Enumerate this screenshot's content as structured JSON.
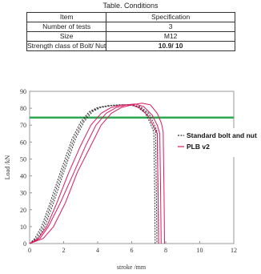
{
  "table": {
    "caption": "Table. Conditions",
    "headers": [
      "Item",
      "Specification"
    ],
    "rows": [
      [
        "Number of tests",
        "3"
      ],
      [
        "Size",
        "M12"
      ],
      [
        "Strength class of Bolt/ Nut",
        "10.9/ 10"
      ]
    ]
  },
  "chart_data": {
    "type": "line",
    "xlabel": "stroke /mm",
    "ylabel": "Load /kN",
    "xlim": [
      0,
      12
    ],
    "ylim": [
      0,
      90
    ],
    "xticks": [
      "0",
      "2",
      "4",
      "6",
      "8",
      "10",
      "12"
    ],
    "yticks": [
      "0",
      "10",
      "20",
      "30",
      "40",
      "50",
      "60",
      "70",
      "80",
      "90"
    ],
    "grid": false,
    "legend_position": "right",
    "reference_line": {
      "y": 74.5,
      "color": "#2fa84f"
    },
    "series": [
      {
        "name": "Standard bolt and nut",
        "color": "#333333",
        "dash": "2,1.5",
        "runs": [
          {
            "x": [
              0,
              0.3,
              0.7,
              1.2,
              1.8,
              2.5,
              3.0,
              3.5,
              4.0,
              4.6,
              5.2,
              5.8,
              6.3,
              6.8,
              7.1,
              7.3,
              7.35,
              7.38
            ],
            "y": [
              0,
              3,
              10,
              24,
              42,
              62,
              72,
              78,
              80.5,
              81.5,
              82,
              82,
              81,
              77,
              71,
              66,
              30,
              0
            ]
          },
          {
            "x": [
              0,
              0.4,
              0.8,
              1.3,
              1.9,
              2.6,
              3.1,
              3.6,
              4.1,
              4.7,
              5.3,
              5.9,
              6.4,
              6.9,
              7.2,
              7.4,
              7.45,
              7.48
            ],
            "y": [
              0,
              3,
              10,
              24,
              42,
              62,
              72,
              78,
              80.5,
              81.5,
              82,
              82,
              81,
              77,
              71,
              66,
              30,
              0
            ]
          },
          {
            "x": [
              0,
              0.5,
              0.9,
              1.4,
              2.0,
              2.7,
              3.2,
              3.7,
              4.2,
              4.8,
              5.4,
              6.0,
              6.5,
              7.0,
              7.3,
              7.5,
              7.55,
              7.58
            ],
            "y": [
              0,
              3,
              10,
              24,
              42,
              62,
              72,
              78,
              80.5,
              81.5,
              82,
              82,
              81,
              77,
              71,
              66,
              30,
              0
            ]
          }
        ]
      },
      {
        "name": "PLB v2",
        "color": "#d81b60",
        "dash": "",
        "runs": [
          {
            "x": [
              0,
              0.5,
              1.0,
              1.6,
              2.3,
              3.0,
              3.6,
              4.2,
              4.8,
              5.4,
              6.0,
              6.5,
              7.0,
              7.3,
              7.5,
              7.55,
              7.58
            ],
            "y": [
              0,
              3,
              10,
              24,
              42,
              58,
              70,
              77,
              80.5,
              82,
              82,
              80,
              75,
              69,
              65,
              30,
              0
            ]
          },
          {
            "x": [
              0,
              0.6,
              1.1,
              1.8,
              2.6,
              3.3,
              3.9,
              4.5,
              5.1,
              5.7,
              6.2,
              6.7,
              7.2,
              7.5,
              7.65,
              7.7,
              7.73
            ],
            "y": [
              0,
              3,
              10,
              24,
              42,
              58,
              70,
              77,
              80.5,
              82,
              82.5,
              81,
              76,
              70,
              65,
              30,
              0
            ]
          },
          {
            "x": [
              0,
              0.8,
              1.4,
              2.1,
              2.8,
              3.6,
              4.2,
              4.8,
              5.4,
              6.0,
              6.6,
              7.1,
              7.5,
              7.75,
              7.85,
              7.9,
              7.93
            ],
            "y": [
              0,
              3,
              10,
              24,
              42,
              58,
              70,
              77,
              80.5,
              82,
              83,
              82,
              77,
              71,
              66,
              30,
              0
            ]
          }
        ]
      }
    ]
  }
}
